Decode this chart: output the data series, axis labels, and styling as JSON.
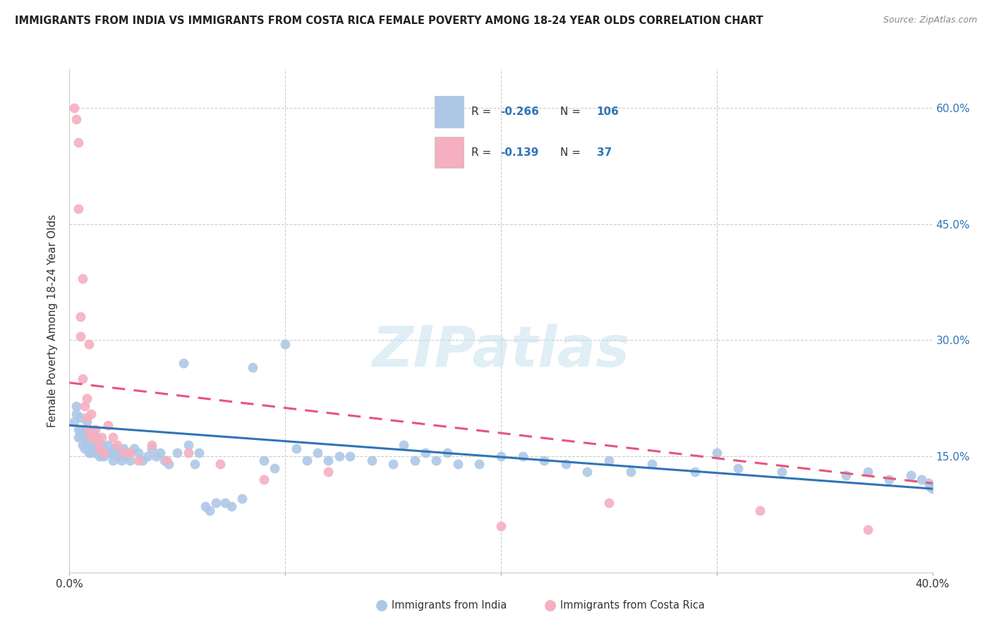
{
  "title": "IMMIGRANTS FROM INDIA VS IMMIGRANTS FROM COSTA RICA FEMALE POVERTY AMONG 18-24 YEAR OLDS CORRELATION CHART",
  "source": "Source: ZipAtlas.com",
  "ylabel": "Female Poverty Among 18-24 Year Olds",
  "xlim": [
    0.0,
    0.4
  ],
  "ylim": [
    0.0,
    0.65
  ],
  "ytick_vals": [
    0.0,
    0.15,
    0.3,
    0.45,
    0.6
  ],
  "ytick_labels_right": [
    "",
    "15.0%",
    "30.0%",
    "45.0%",
    "60.0%"
  ],
  "india_color": "#adc8e6",
  "costa_rica_color": "#f5afc0",
  "india_line_color": "#2e75b6",
  "costa_rica_line_color": "#e8547a",
  "india_R": "-0.266",
  "india_N": "106",
  "costa_rica_R": "-0.139",
  "costa_rica_N": "37",
  "watermark_text": "ZIPatlas",
  "india_scatter_x": [
    0.002,
    0.003,
    0.003,
    0.004,
    0.004,
    0.005,
    0.005,
    0.005,
    0.006,
    0.006,
    0.007,
    0.007,
    0.007,
    0.008,
    0.008,
    0.008,
    0.009,
    0.009,
    0.01,
    0.01,
    0.01,
    0.011,
    0.011,
    0.012,
    0.012,
    0.012,
    0.013,
    0.013,
    0.014,
    0.014,
    0.015,
    0.015,
    0.016,
    0.016,
    0.017,
    0.018,
    0.018,
    0.019,
    0.02,
    0.021,
    0.022,
    0.023,
    0.024,
    0.025,
    0.026,
    0.027,
    0.028,
    0.03,
    0.032,
    0.034,
    0.036,
    0.038,
    0.04,
    0.042,
    0.044,
    0.046,
    0.05,
    0.053,
    0.055,
    0.058,
    0.06,
    0.063,
    0.065,
    0.068,
    0.072,
    0.075,
    0.08,
    0.085,
    0.09,
    0.095,
    0.1,
    0.105,
    0.11,
    0.115,
    0.12,
    0.125,
    0.13,
    0.14,
    0.15,
    0.155,
    0.16,
    0.165,
    0.17,
    0.175,
    0.18,
    0.19,
    0.2,
    0.21,
    0.22,
    0.23,
    0.24,
    0.25,
    0.26,
    0.27,
    0.29,
    0.3,
    0.31,
    0.33,
    0.36,
    0.37,
    0.38,
    0.39,
    0.395,
    0.398,
    0.399,
    0.4
  ],
  "india_scatter_y": [
    0.195,
    0.205,
    0.215,
    0.185,
    0.175,
    0.2,
    0.185,
    0.175,
    0.165,
    0.18,
    0.17,
    0.175,
    0.16,
    0.195,
    0.185,
    0.165,
    0.175,
    0.155,
    0.175,
    0.165,
    0.155,
    0.165,
    0.18,
    0.155,
    0.17,
    0.16,
    0.16,
    0.175,
    0.16,
    0.15,
    0.165,
    0.155,
    0.16,
    0.15,
    0.155,
    0.165,
    0.155,
    0.155,
    0.145,
    0.16,
    0.15,
    0.155,
    0.145,
    0.16,
    0.15,
    0.155,
    0.145,
    0.16,
    0.155,
    0.145,
    0.15,
    0.16,
    0.15,
    0.155,
    0.145,
    0.14,
    0.155,
    0.27,
    0.165,
    0.14,
    0.155,
    0.085,
    0.08,
    0.09,
    0.09,
    0.085,
    0.095,
    0.265,
    0.145,
    0.135,
    0.295,
    0.16,
    0.145,
    0.155,
    0.145,
    0.15,
    0.15,
    0.145,
    0.14,
    0.165,
    0.145,
    0.155,
    0.145,
    0.155,
    0.14,
    0.14,
    0.15,
    0.15,
    0.145,
    0.14,
    0.13,
    0.145,
    0.13,
    0.14,
    0.13,
    0.155,
    0.135,
    0.13,
    0.125,
    0.13,
    0.12,
    0.125,
    0.12,
    0.115,
    0.11,
    0.108
  ],
  "costa_rica_scatter_x": [
    0.002,
    0.003,
    0.004,
    0.004,
    0.005,
    0.005,
    0.006,
    0.006,
    0.007,
    0.008,
    0.008,
    0.009,
    0.009,
    0.01,
    0.01,
    0.011,
    0.012,
    0.013,
    0.014,
    0.015,
    0.016,
    0.018,
    0.02,
    0.022,
    0.025,
    0.028,
    0.032,
    0.038,
    0.045,
    0.055,
    0.07,
    0.09,
    0.12,
    0.2,
    0.25,
    0.32,
    0.37
  ],
  "costa_rica_scatter_y": [
    0.6,
    0.585,
    0.555,
    0.47,
    0.33,
    0.305,
    0.38,
    0.25,
    0.215,
    0.225,
    0.2,
    0.295,
    0.185,
    0.205,
    0.175,
    0.175,
    0.185,
    0.17,
    0.16,
    0.175,
    0.155,
    0.19,
    0.175,
    0.165,
    0.155,
    0.155,
    0.145,
    0.165,
    0.145,
    0.155,
    0.14,
    0.12,
    0.13,
    0.06,
    0.09,
    0.08,
    0.055
  ],
  "india_line_x": [
    0.0,
    0.4
  ],
  "india_line_y": [
    0.19,
    0.108
  ],
  "costa_rica_line_x": [
    0.0,
    0.4
  ],
  "costa_rica_line_y": [
    0.245,
    0.115
  ]
}
